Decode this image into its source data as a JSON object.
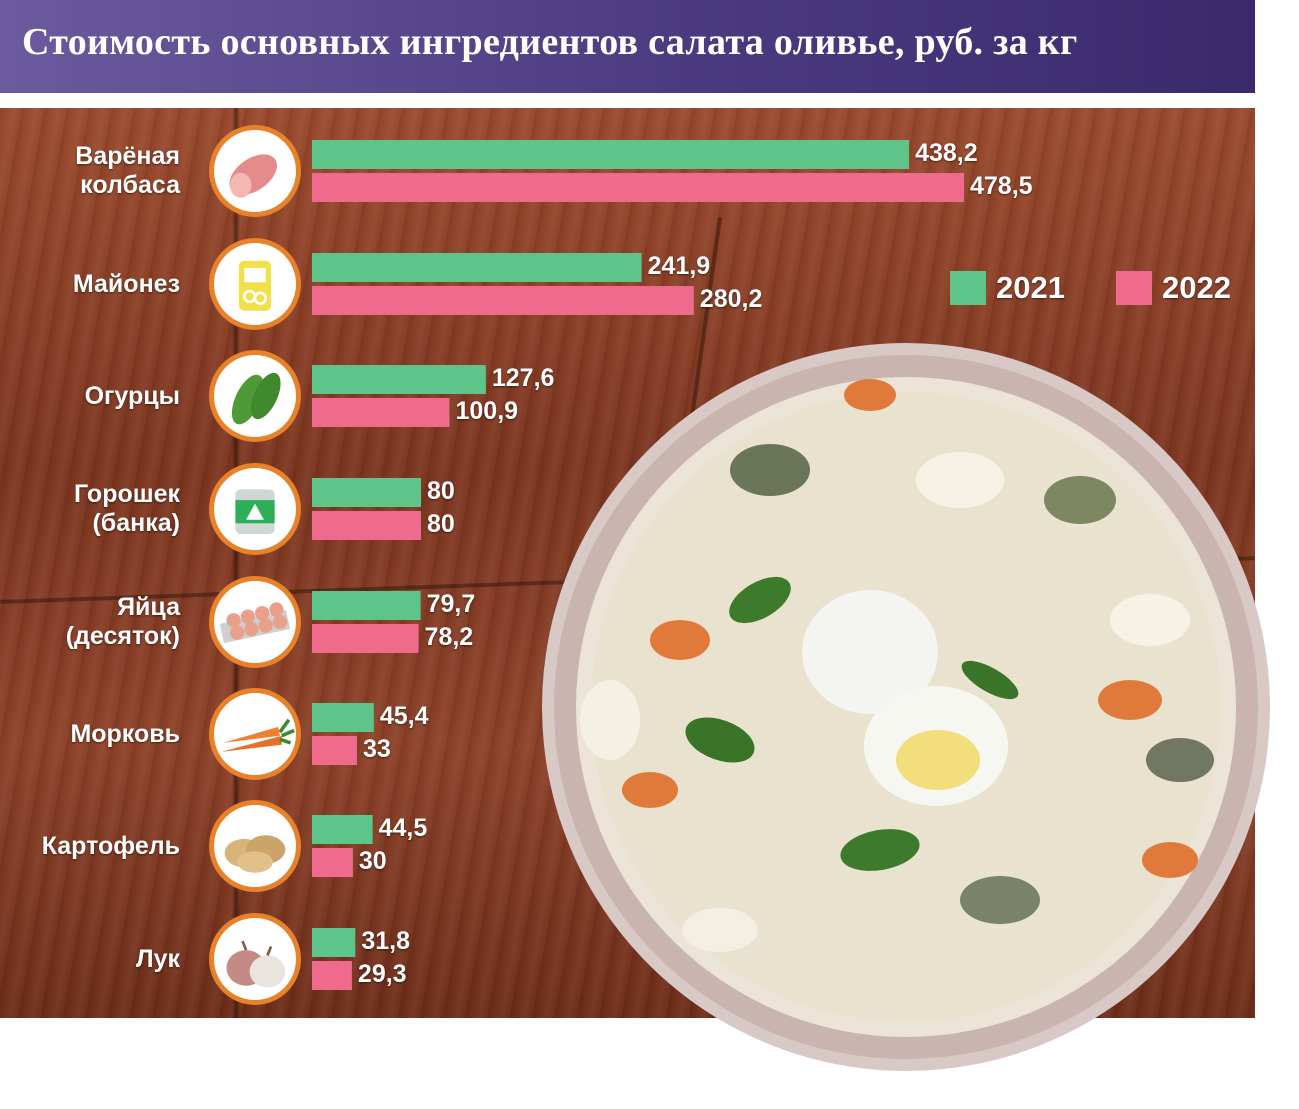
{
  "title": "Стоимость основных ингредиентов салата оливье, руб. за кг",
  "colors": {
    "y2021": "#5ec48a",
    "y2022": "#ee6b8e",
    "accent": "#e7822a",
    "title_bg": "#4b3a80"
  },
  "legend": {
    "items": [
      {
        "label": "2021"
      },
      {
        "label": "2022"
      }
    ]
  },
  "chart_data": {
    "type": "bar",
    "orientation": "horizontal",
    "title": "Стоимость основных ингредиентов салата оливье, руб. за кг",
    "categories": [
      "Варёная\nколбаса",
      "Майонез",
      "Огурцы",
      "Горошек\n(банка)",
      "Яйца\n(десяток)",
      "Морковь",
      "Картофель",
      "Лук"
    ],
    "icons": [
      "sausage-icon",
      "mayonnaise-icon",
      "cucumber-icon",
      "peas-can-icon",
      "eggs-icon",
      "carrot-icon",
      "potato-icon",
      "onion-icon"
    ],
    "series": [
      {
        "name": "2021",
        "values": [
          438.2,
          241.9,
          127.6,
          80,
          79.7,
          45.4,
          44.5,
          31.8
        ],
        "labels": [
          "438,2",
          "241,9",
          "127,6",
          "80",
          "79,7",
          "45,4",
          "44,5",
          "31,8"
        ]
      },
      {
        "name": "2022",
        "values": [
          478.5,
          280.2,
          100.9,
          80,
          78.2,
          33,
          30,
          29.3
        ],
        "labels": [
          "478,5",
          "280,2",
          "100,9",
          "80",
          "78,2",
          "33",
          "30",
          "29,3"
        ]
      }
    ],
    "xlim": [
      0,
      478.5
    ],
    "legend_position": "right"
  }
}
